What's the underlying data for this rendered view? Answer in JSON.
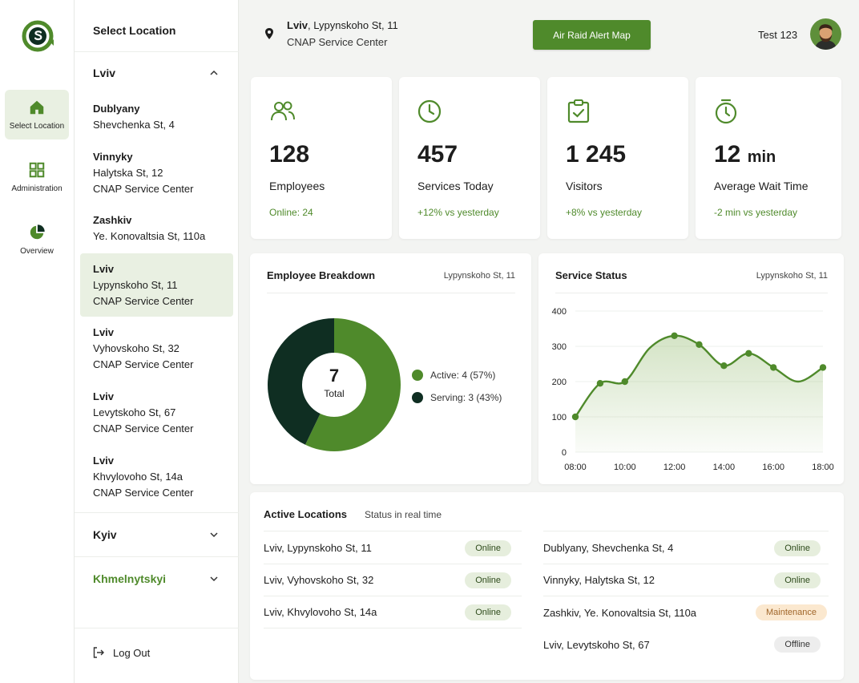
{
  "colors": {
    "accent": "#4f8a2b",
    "dark": "#0f2e22",
    "accent_light": "#e9f0e2"
  },
  "rail": {
    "items": [
      {
        "label": "Select Location",
        "icon": "home-icon"
      },
      {
        "label": "Administration",
        "icon": "grid-icon"
      },
      {
        "label": "Overview",
        "icon": "pie-chart-icon"
      }
    ]
  },
  "locations": {
    "title": "Select Location",
    "cities": [
      {
        "name": "Lviv",
        "expanded": true
      },
      {
        "name": "Kyiv",
        "expanded": false
      },
      {
        "name": "Khmelnytskyi",
        "expanded": false
      }
    ],
    "items": [
      {
        "title": "Dublyany",
        "line1": "Shevchenka St, 4",
        "line2": ""
      },
      {
        "title": "Vinnyky",
        "line1": "Halytska St, 12",
        "line2": "CNAP Service Center"
      },
      {
        "title": "Zashkiv",
        "line1": "Ye. Konovaltsia St, 110a",
        "line2": ""
      },
      {
        "title": "Lviv",
        "line1": "Lypynskoho St, 11",
        "line2": "CNAP Service Center"
      },
      {
        "title": "Lviv",
        "line1": "Vyhovskoho St, 32",
        "line2": "CNAP Service Center"
      },
      {
        "title": "Lviv",
        "line1": "Levytskoho St, 67",
        "line2": "CNAP Service Center"
      },
      {
        "title": "Lviv",
        "line1": "Khvylovoho St, 14a",
        "line2": "CNAP Service Center"
      }
    ],
    "logout": "Log Out"
  },
  "header": {
    "city": "Lviv",
    "street": ", Lypynskoho St, 11",
    "center": "CNAP Service Center",
    "alert_button": "Air Raid Alert Map",
    "user": "Test 123"
  },
  "stats": [
    {
      "value": "128",
      "unit": "",
      "label": "Employees",
      "sub": "Online: 24",
      "icon": "users-icon"
    },
    {
      "value": "457",
      "unit": "",
      "label": "Services Today",
      "sub": "+12% vs yesterday",
      "icon": "clock-icon"
    },
    {
      "value": "1 245",
      "unit": "",
      "label": "Visitors",
      "sub": "+8% vs yesterday",
      "icon": "clipboard-check-icon"
    },
    {
      "value": "12",
      "unit": "min",
      "label": "Average Wait Time",
      "sub": "-2 min vs yesterday",
      "icon": "timer-icon"
    }
  ],
  "breakdown": {
    "title": "Employee Breakdown",
    "location": "Lypynskoho St, 11",
    "total_value": "7",
    "total_label": "Total",
    "legend": [
      "Active: 4 (57%)",
      "Serving: 3 (43%)"
    ]
  },
  "status_panel": {
    "title": "Service Status",
    "location": "Lypynskoho St, 11"
  },
  "chart_data": [
    {
      "type": "pie",
      "labels": [
        "Active",
        "Serving"
      ],
      "values": [
        4,
        3
      ],
      "colors": [
        "#4f8a2b",
        "#0f2e22"
      ]
    },
    {
      "type": "area",
      "x": [
        "08:00",
        "09:00",
        "10:00",
        "11:00",
        "12:00",
        "13:00",
        "14:00",
        "15:00",
        "16:00",
        "17:00",
        "18:00"
      ],
      "y": [
        100,
        195,
        200,
        295,
        330,
        305,
        245,
        280,
        240,
        200,
        240
      ],
      "x_ticks": [
        "08:00",
        "10:00",
        "12:00",
        "14:00",
        "16:00",
        "18:00"
      ],
      "y_ticks": [
        "0",
        "100",
        "200",
        "300",
        "400"
      ],
      "ylim": [
        0,
        400
      ],
      "markers_at": [
        "08:00",
        "09:00",
        "10:00",
        "12:00",
        "13:00",
        "14:00",
        "15:00",
        "16:00",
        "18:00"
      ],
      "grid": true,
      "legend": "none"
    }
  ],
  "active_locations": {
    "title": "Active Locations",
    "subtitle": "Status in real time",
    "left": [
      {
        "name": "Lviv, Lypynskoho St, 11",
        "status": "Online"
      },
      {
        "name": "Lviv, Vyhovskoho St, 32",
        "status": "Online"
      },
      {
        "name": "Lviv, Khvylovoho St, 14a",
        "status": "Online"
      }
    ],
    "right": [
      {
        "name": "Dublyany, Shevchenka St, 4",
        "status": "Online"
      },
      {
        "name": "Vinnyky, Halytska St, 12",
        "status": "Online"
      },
      {
        "name": "Zashkiv, Ye. Konovaltsia St, 110a",
        "status": "Maintenance"
      },
      {
        "name": "Lviv, Levytskoho St, 67",
        "status": "Offline"
      }
    ]
  }
}
